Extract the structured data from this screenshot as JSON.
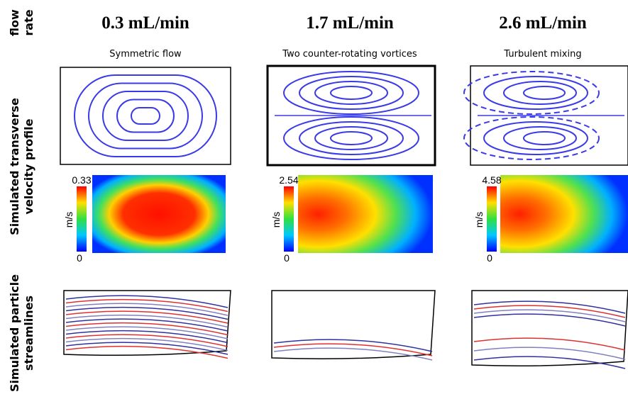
{
  "row_labels": [
    {
      "lines": [
        "flow",
        "rate"
      ]
    },
    {
      "lines": [
        "Simulated transverse",
        "velocity profile"
      ]
    },
    {
      "lines": [
        "Simulated particle",
        "streamlines"
      ]
    }
  ],
  "columns": [
    {
      "title": "0.3 mL/min",
      "subtitle": "Symmetric flow",
      "colorbar": {
        "max": 0.33,
        "min": 0,
        "unit": "m/s"
      }
    },
    {
      "title": "1.7 mL/min",
      "subtitle": "Two counter-rotating vortices",
      "colorbar": {
        "max": 2.54,
        "min": 0,
        "unit": "m/s"
      }
    },
    {
      "title": "2.6 mL/min",
      "subtitle": "Turbulent mixing",
      "colorbar": {
        "max": 4.58,
        "min": 0,
        "unit": "m/s"
      }
    }
  ]
}
